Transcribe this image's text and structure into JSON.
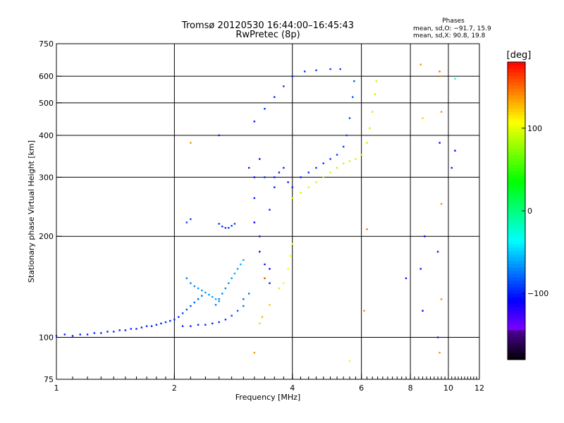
{
  "chart_data": {
    "type": "scatter",
    "title": "Tromsø 20120530 16:44:00–16:45:43",
    "subtitle": "RwPretec (8p)",
    "info": {
      "heading": "Phases",
      "line1": "mean, sd,O:  −91.7, 15.9",
      "line2": "mean, sd,X:  90.8, 19.8"
    },
    "xlabel": "Frequency [MHz]",
    "ylabel": "Stationary phase Virtual Height [km]",
    "x_scale": "log",
    "y_scale": "log",
    "xlim": [
      1,
      12
    ],
    "ylim": [
      75,
      750
    ],
    "x_ticks": [
      1,
      2,
      4,
      6,
      8,
      10,
      12
    ],
    "x_tick_labels": [
      "1",
      "2",
      "4",
      "6",
      "8",
      "10",
      "12"
    ],
    "x_grid": [
      2,
      4,
      6,
      8,
      10
    ],
    "y_ticks": [
      75,
      100,
      200,
      300,
      400,
      500,
      600,
      750
    ],
    "y_tick_labels": [
      "75",
      "100",
      "200",
      "300",
      "400",
      "500",
      "600",
      "750"
    ],
    "y_grid": [
      100,
      200,
      300,
      400,
      500,
      600
    ],
    "grid": true,
    "colorbar": {
      "label": "[deg]",
      "min": -180,
      "max": 180,
      "ticks": [
        100,
        0,
        -100
      ],
      "tick_labels": [
        "100",
        "0",
        "−100"
      ]
    },
    "series": [
      {
        "points": [
          [
            1.0,
            101,
            -100
          ],
          [
            1.05,
            102,
            -101
          ],
          [
            1.1,
            101,
            -102
          ],
          [
            1.15,
            102,
            -100
          ],
          [
            1.2,
            102,
            -99
          ],
          [
            1.25,
            103,
            -101
          ],
          [
            1.3,
            103,
            -100
          ],
          [
            1.35,
            104,
            -102
          ],
          [
            1.4,
            104,
            -98
          ],
          [
            1.45,
            105,
            -100
          ],
          [
            1.5,
            105,
            -101
          ],
          [
            1.55,
            106,
            -99
          ],
          [
            1.6,
            106,
            -100
          ],
          [
            1.65,
            107,
            -102
          ],
          [
            1.7,
            108,
            -98
          ],
          [
            1.75,
            108,
            -100
          ],
          [
            1.8,
            109,
            -99
          ],
          [
            1.85,
            110,
            -101
          ],
          [
            1.9,
            111,
            -97
          ],
          [
            1.95,
            112,
            -98
          ],
          [
            2.0,
            113,
            -96
          ],
          [
            2.05,
            115,
            -95
          ],
          [
            2.1,
            118,
            -90
          ],
          [
            2.15,
            121,
            -85
          ],
          [
            2.2,
            124,
            -85
          ],
          [
            2.25,
            127,
            -80
          ],
          [
            2.3,
            130,
            -82
          ],
          [
            2.35,
            133,
            -78
          ]
        ]
      },
      {
        "points": [
          [
            2.1,
            108,
            -100
          ],
          [
            2.2,
            108,
            -101
          ],
          [
            2.3,
            109,
            -99
          ],
          [
            2.4,
            109,
            -100
          ],
          [
            2.5,
            110,
            -98
          ],
          [
            2.6,
            111,
            -97
          ],
          [
            2.7,
            113,
            -95
          ],
          [
            2.8,
            116,
            -90
          ],
          [
            2.9,
            120,
            -85
          ],
          [
            3.0,
            124,
            -80
          ],
          [
            3.0,
            130,
            -78
          ],
          [
            3.1,
            135,
            -76
          ]
        ]
      },
      {
        "points": [
          [
            2.55,
            125,
            -75
          ],
          [
            2.6,
            130,
            -74
          ],
          [
            2.65,
            135,
            -70
          ],
          [
            2.7,
            140,
            -72
          ],
          [
            2.75,
            145,
            -66
          ],
          [
            2.8,
            150,
            -65
          ],
          [
            2.85,
            155,
            -60
          ],
          [
            2.9,
            160,
            -62
          ],
          [
            2.95,
            165,
            -58
          ],
          [
            3.0,
            170,
            -60
          ]
        ]
      },
      {
        "points": [
          [
            2.15,
            150,
            -74
          ],
          [
            2.2,
            145,
            -72
          ],
          [
            2.25,
            142,
            -70
          ],
          [
            2.3,
            140,
            -68
          ],
          [
            2.35,
            138,
            -66
          ],
          [
            2.4,
            136,
            -65
          ],
          [
            2.45,
            134,
            -68
          ],
          [
            2.5,
            132,
            -64
          ],
          [
            2.55,
            130,
            -62
          ],
          [
            2.6,
            128,
            -60
          ]
        ]
      },
      {
        "points": [
          [
            2.15,
            220,
            -90
          ],
          [
            2.2,
            225,
            -88
          ],
          [
            2.6,
            218,
            -92
          ],
          [
            2.65,
            214,
            -95
          ],
          [
            2.7,
            212,
            -96
          ],
          [
            2.75,
            212,
            -94
          ],
          [
            2.8,
            215,
            -92
          ],
          [
            2.85,
            218,
            -90
          ]
        ]
      },
      {
        "points": [
          [
            3.1,
            320,
            -100
          ],
          [
            3.2,
            300,
            -105
          ],
          [
            3.2,
            260,
            -102
          ],
          [
            3.2,
            220,
            -108
          ],
          [
            3.3,
            200,
            -104
          ],
          [
            3.3,
            180,
            -110
          ],
          [
            3.4,
            165,
            -102
          ],
          [
            3.4,
            150,
            -112
          ],
          [
            3.5,
            145,
            -100
          ],
          [
            3.5,
            160,
            -106
          ],
          [
            3.5,
            240,
            -98
          ],
          [
            3.6,
            280,
            -100
          ],
          [
            3.3,
            340,
            -104
          ],
          [
            3.4,
            300,
            -96
          ]
        ]
      },
      {
        "points": [
          [
            3.6,
            300,
            -102
          ],
          [
            3.7,
            310,
            -100
          ],
          [
            3.8,
            320,
            -98
          ],
          [
            3.9,
            290,
            -101
          ],
          [
            4.0,
            280,
            -99
          ],
          [
            4.2,
            300,
            -100
          ],
          [
            4.4,
            310,
            -97
          ],
          [
            4.6,
            320,
            -96
          ],
          [
            4.8,
            330,
            -95
          ],
          [
            5.0,
            340,
            -94
          ],
          [
            5.2,
            350,
            -93
          ],
          [
            5.4,
            370,
            -92
          ],
          [
            5.5,
            400,
            -90
          ],
          [
            5.6,
            450,
            -88
          ],
          [
            5.7,
            520,
            -86
          ],
          [
            5.75,
            580,
            -85
          ]
        ]
      },
      {
        "points": [
          [
            3.2,
            440,
            -100
          ],
          [
            3.4,
            480,
            -98
          ],
          [
            3.6,
            520,
            -97
          ],
          [
            3.8,
            560,
            -96
          ],
          [
            4.0,
            600,
            -95
          ],
          [
            4.3,
            620,
            -94
          ],
          [
            4.6,
            625,
            -93
          ],
          [
            5.0,
            630,
            -92
          ],
          [
            5.3,
            630,
            -91
          ]
        ]
      },
      {
        "points": [
          [
            4.0,
            260,
            90
          ],
          [
            4.2,
            270,
            92
          ],
          [
            4.4,
            280,
            94
          ],
          [
            4.6,
            290,
            92
          ],
          [
            4.8,
            300,
            88
          ],
          [
            5.0,
            310,
            90
          ],
          [
            5.2,
            320,
            86
          ],
          [
            5.4,
            330,
            88
          ],
          [
            5.6,
            335,
            90
          ],
          [
            5.8,
            340,
            92
          ],
          [
            6.0,
            350,
            90
          ],
          [
            6.2,
            380,
            88
          ],
          [
            6.3,
            420,
            86
          ],
          [
            6.4,
            470,
            88
          ],
          [
            6.5,
            530,
            90
          ],
          [
            6.55,
            580,
            92
          ]
        ]
      },
      {
        "points": [
          [
            3.3,
            110,
            120
          ],
          [
            3.35,
            115,
            130
          ],
          [
            3.5,
            125,
            125
          ],
          [
            3.7,
            140,
            115
          ],
          [
            3.8,
            145,
            110
          ],
          [
            3.9,
            160,
            108
          ],
          [
            3.95,
            175,
            106
          ],
          [
            4.0,
            190,
            104
          ]
        ]
      },
      {
        "points": [
          [
            8.5,
            650,
            140
          ],
          [
            9.5,
            620,
            150
          ],
          [
            9.6,
            600,
            140
          ],
          [
            8.6,
            450,
            120
          ],
          [
            9.5,
            380,
            -105
          ],
          [
            9.6,
            250,
            140
          ],
          [
            8.7,
            200,
            -110
          ],
          [
            9.4,
            180,
            -100
          ],
          [
            8.5,
            160,
            -100
          ],
          [
            9.6,
            130,
            140
          ],
          [
            8.6,
            120,
            -108
          ],
          [
            9.4,
            100,
            -130
          ],
          [
            9.5,
            90,
            140
          ],
          [
            7.8,
            150,
            -120
          ],
          [
            5.6,
            85,
            110
          ],
          [
            6.2,
            210,
            150
          ],
          [
            6.1,
            120,
            140
          ],
          [
            3.2,
            90,
            140
          ],
          [
            2.2,
            380,
            140
          ],
          [
            2.6,
            400,
            -100
          ],
          [
            10.4,
            360,
            -110
          ],
          [
            10.4,
            590,
            -30
          ],
          [
            10.2,
            320,
            -100
          ],
          [
            9.6,
            470,
            140
          ],
          [
            3.4,
            150,
            150
          ]
        ]
      }
    ]
  }
}
